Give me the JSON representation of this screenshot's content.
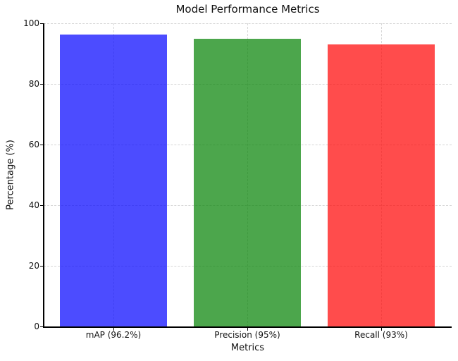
{
  "chart_data": {
    "type": "bar",
    "title": "Model Performance Metrics",
    "xlabel": "Metrics",
    "ylabel": "Percentage (%)",
    "categories": [
      "mAP (96.2%)",
      "Precision (95%)",
      "Recall (93%)"
    ],
    "values": [
      96.2,
      95,
      93
    ],
    "bar_colors": [
      "#0000ff",
      "#008000",
      "#ff0000"
    ],
    "bar_colors_rendered": [
      "#4c4cf2",
      "#4ca64c",
      "#ff4c4c"
    ],
    "bar_alpha": 0.7,
    "ylim": [
      0,
      100
    ],
    "yticks": [
      0,
      20,
      40,
      60,
      80,
      100
    ],
    "grid": true,
    "grid_style": "dashed",
    "legend_visible": false
  }
}
